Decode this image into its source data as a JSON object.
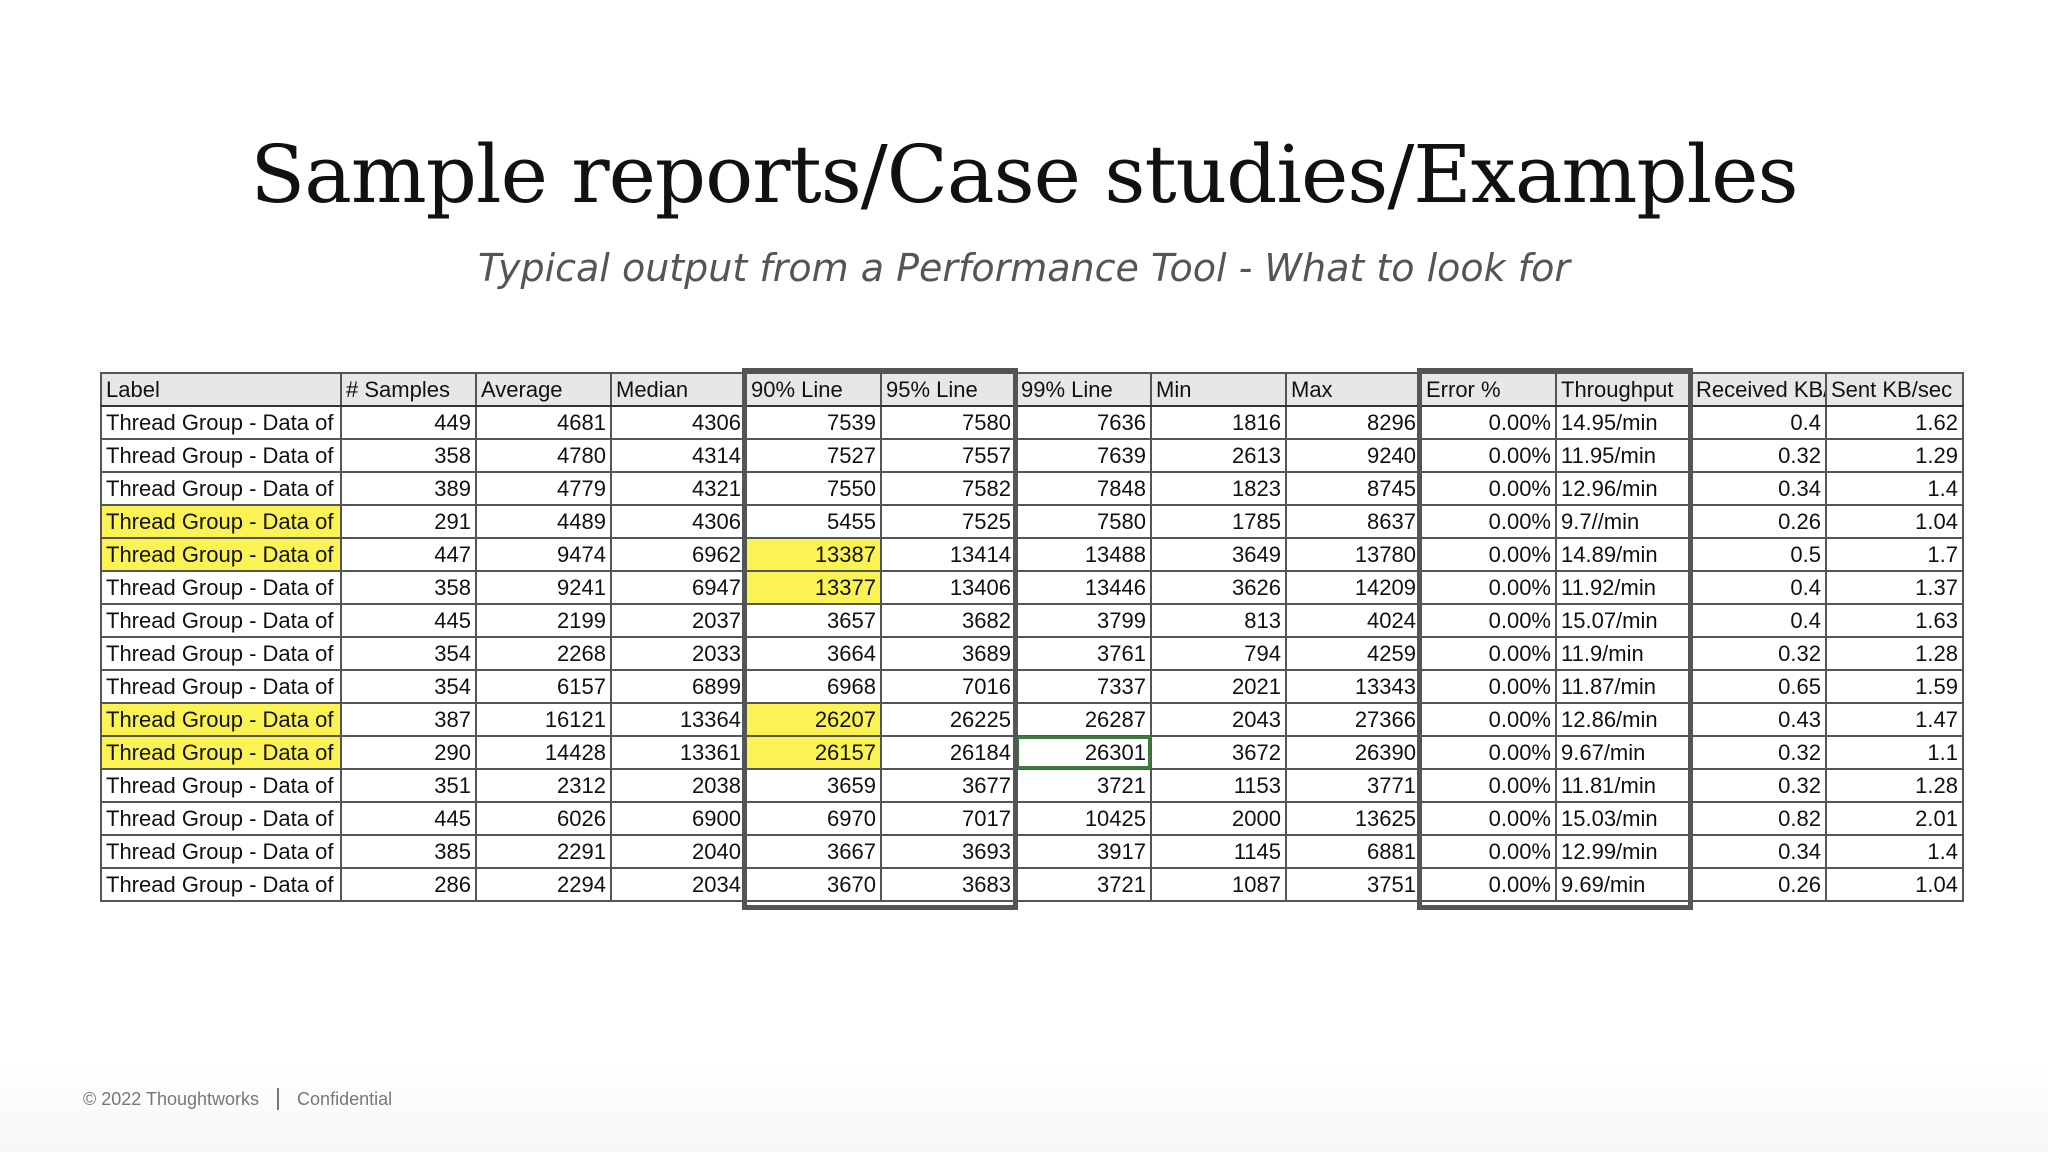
{
  "slide": {
    "title": "Sample reports/Case studies/Examples",
    "subtitle": "Typical output from a Performance Tool - What to look for",
    "footer_copyright": "© 2022 Thoughtworks",
    "footer_confidential": "Confidential"
  },
  "table": {
    "headers": [
      "Label",
      "# Samples",
      "Average",
      "Median",
      "90% Line",
      "95% Line",
      "99% Line",
      "Min",
      "Max",
      "Error %",
      "Throughput",
      "Received KB/sec",
      "Sent KB/sec"
    ],
    "rows": [
      {
        "cells": [
          "Thread Group - Data of",
          "449",
          "4681",
          "4306",
          "7539",
          "7580",
          "7636",
          "1816",
          "8296",
          "0.00%",
          "14.95/min",
          "0.4",
          "1.62"
        ],
        "highlight": false,
        "hl90": false
      },
      {
        "cells": [
          "Thread Group - Data of",
          "358",
          "4780",
          "4314",
          "7527",
          "7557",
          "7639",
          "2613",
          "9240",
          "0.00%",
          "11.95/min",
          "0.32",
          "1.29"
        ],
        "highlight": false,
        "hl90": false
      },
      {
        "cells": [
          "Thread Group - Data of",
          "389",
          "4779",
          "4321",
          "7550",
          "7582",
          "7848",
          "1823",
          "8745",
          "0.00%",
          "12.96/min",
          "0.34",
          "1.4"
        ],
        "highlight": false,
        "hl90": false
      },
      {
        "cells": [
          "Thread Group - Data of",
          "291",
          "4489",
          "4306",
          "5455",
          "7525",
          "7580",
          "1785",
          "8637",
          "0.00%",
          "9.7//min",
          "0.26",
          "1.04"
        ],
        "highlight": true,
        "hl90": false
      },
      {
        "cells": [
          "Thread Group - Data of",
          "447",
          "9474",
          "6962",
          "13387",
          "13414",
          "13488",
          "3649",
          "13780",
          "0.00%",
          "14.89/min",
          "0.5",
          "1.7"
        ],
        "highlight": true,
        "hl90": true
      },
      {
        "cells": [
          "Thread Group - Data of",
          "358",
          "9241",
          "6947",
          "13377",
          "13406",
          "13446",
          "3626",
          "14209",
          "0.00%",
          "11.92/min",
          "0.4",
          "1.37"
        ],
        "highlight": false,
        "hl90": true
      },
      {
        "cells": [
          "Thread Group - Data of",
          "445",
          "2199",
          "2037",
          "3657",
          "3682",
          "3799",
          "813",
          "4024",
          "0.00%",
          "15.07/min",
          "0.4",
          "1.63"
        ],
        "highlight": false,
        "hl90": false
      },
      {
        "cells": [
          "Thread Group - Data of",
          "354",
          "2268",
          "2033",
          "3664",
          "3689",
          "3761",
          "794",
          "4259",
          "0.00%",
          "11.9/min",
          "0.32",
          "1.28"
        ],
        "highlight": false,
        "hl90": false
      },
      {
        "cells": [
          "Thread Group - Data of",
          "354",
          "6157",
          "6899",
          "6968",
          "7016",
          "7337",
          "2021",
          "13343",
          "0.00%",
          "11.87/min",
          "0.65",
          "1.59"
        ],
        "highlight": false,
        "hl90": false
      },
      {
        "cells": [
          "Thread Group - Data of",
          "387",
          "16121",
          "13364",
          "26207",
          "26225",
          "26287",
          "2043",
          "27366",
          "0.00%",
          "12.86/min",
          "0.43",
          "1.47"
        ],
        "highlight": true,
        "hl90": true
      },
      {
        "cells": [
          "Thread Group - Data of",
          "290",
          "14428",
          "13361",
          "26157",
          "26184",
          "26301",
          "3672",
          "26390",
          "0.00%",
          "9.67/min",
          "0.32",
          "1.1"
        ],
        "highlight": true,
        "hl90": true
      },
      {
        "cells": [
          "Thread Group - Data of",
          "351",
          "2312",
          "2038",
          "3659",
          "3677",
          "3721",
          "1153",
          "3771",
          "0.00%",
          "11.81/min",
          "0.32",
          "1.28"
        ],
        "highlight": false,
        "hl90": false
      },
      {
        "cells": [
          "Thread Group - Data of",
          "445",
          "6026",
          "6900",
          "6970",
          "7017",
          "10425",
          "2000",
          "13625",
          "0.00%",
          "15.03/min",
          "0.82",
          "2.01"
        ],
        "highlight": false,
        "hl90": false
      },
      {
        "cells": [
          "Thread Group - Data of",
          "385",
          "2291",
          "2040",
          "3667",
          "3693",
          "3917",
          "1145",
          "6881",
          "0.00%",
          "12.99/min",
          "0.34",
          "1.4"
        ],
        "highlight": false,
        "hl90": false
      },
      {
        "cells": [
          "Thread Group - Data of",
          "286",
          "2294",
          "2034",
          "3670",
          "3683",
          "3721",
          "1087",
          "3751",
          "0.00%",
          "9.69/min",
          "0.26",
          "1.04"
        ],
        "highlight": false,
        "hl90": false
      }
    ],
    "highlight_color": "#fbf253",
    "box_color": "#555555"
  }
}
